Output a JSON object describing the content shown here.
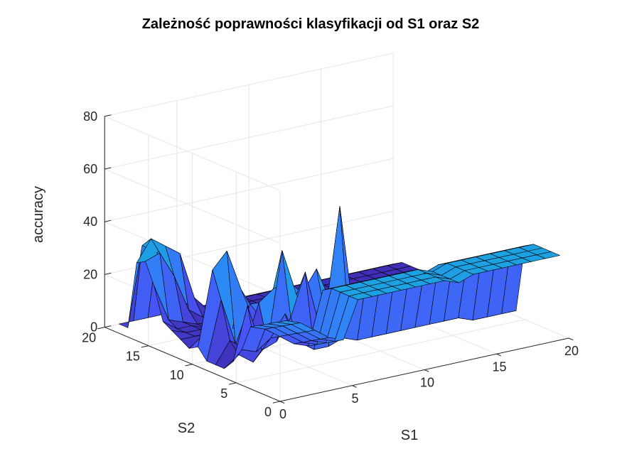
{
  "chart_data": {
    "type": "surface",
    "title": "Zależność poprawności klasyfikacji od S1 oraz S2",
    "xlabel": "S1",
    "ylabel": "S2",
    "zlabel": "accuracy",
    "xlim": [
      0,
      20
    ],
    "ylim": [
      0,
      20
    ],
    "zlim": [
      0,
      80
    ],
    "xticks": [
      "0",
      "5",
      "10",
      "15",
      "20"
    ],
    "yticks": [
      "0",
      "5",
      "10",
      "15",
      "20"
    ],
    "zticks": [
      "0",
      "20",
      "40",
      "60",
      "80"
    ],
    "grid": true,
    "colormap": "parula",
    "x": [
      1,
      2,
      3,
      4,
      5,
      6,
      7,
      8,
      9,
      10,
      11,
      12,
      13,
      14,
      15,
      16,
      17,
      18,
      19,
      20
    ],
    "y": [
      1,
      2,
      3,
      4,
      5,
      6,
      7,
      8,
      9,
      10,
      11,
      12,
      13,
      14,
      15,
      16,
      17,
      18,
      19,
      20
    ],
    "z": [
      [
        28,
        26,
        22,
        18,
        16,
        30,
        30,
        30,
        30,
        30,
        30,
        30,
        28,
        30,
        30,
        30,
        30,
        30,
        30,
        30
      ],
      [
        26,
        24,
        20,
        16,
        14,
        30,
        30,
        30,
        30,
        30,
        30,
        30,
        28,
        30,
        30,
        30,
        30,
        30,
        30,
        30
      ],
      [
        24,
        22,
        18,
        14,
        12,
        30,
        30,
        30,
        30,
        30,
        30,
        30,
        28,
        30,
        30,
        30,
        30,
        30,
        30,
        30
      ],
      [
        22,
        20,
        16,
        12,
        10,
        30,
        30,
        30,
        30,
        30,
        30,
        30,
        28,
        30,
        30,
        30,
        30,
        30,
        30,
        30
      ],
      [
        20,
        18,
        14,
        10,
        8,
        28,
        28,
        28,
        28,
        28,
        28,
        28,
        26,
        28,
        28,
        28,
        28,
        28,
        28,
        28
      ],
      [
        10,
        8,
        12,
        20,
        8,
        4,
        4,
        6,
        4,
        4,
        4,
        4,
        4,
        4,
        4,
        4,
        2,
        2,
        2,
        2
      ],
      [
        4,
        24,
        6,
        8,
        16,
        32,
        10,
        12,
        10,
        4,
        2,
        2,
        2,
        2,
        2,
        2,
        2,
        2,
        2,
        2
      ],
      [
        0,
        4,
        0,
        6,
        40,
        22,
        14,
        12,
        52,
        8,
        4,
        2,
        2,
        2,
        2,
        2,
        2,
        2,
        2,
        2
      ],
      [
        0,
        8,
        4,
        20,
        24,
        26,
        20,
        28,
        14,
        6,
        4,
        2,
        2,
        2,
        2,
        2,
        2,
        2,
        2,
        2
      ],
      [
        0,
        22,
        4,
        18,
        10,
        8,
        20,
        6,
        10,
        4,
        2,
        2,
        2,
        2,
        2,
        2,
        2,
        2,
        2,
        2
      ],
      [
        4,
        32,
        38,
        22,
        8,
        6,
        6,
        6,
        4,
        2,
        2,
        2,
        2,
        2,
        2,
        2,
        2,
        2,
        2,
        2
      ],
      [
        2,
        6,
        8,
        6,
        4,
        4,
        4,
        4,
        2,
        2,
        2,
        2,
        2,
        2,
        2,
        2,
        2,
        2,
        2,
        2
      ],
      [
        4,
        4,
        4,
        4,
        4,
        4,
        2,
        2,
        2,
        2,
        2,
        2,
        2,
        2,
        2,
        2,
        2,
        2,
        2,
        2
      ],
      [
        6,
        4,
        4,
        4,
        4,
        2,
        2,
        2,
        2,
        2,
        2,
        2,
        2,
        2,
        2,
        2,
        2,
        2,
        2,
        2
      ],
      [
        8,
        4,
        4,
        2,
        2,
        2,
        2,
        2,
        2,
        2,
        2,
        2,
        2,
        2,
        2,
        2,
        2,
        2,
        2,
        2
      ],
      [
        20,
        6,
        4,
        2,
        2,
        2,
        2,
        2,
        2,
        2,
        2,
        2,
        2,
        2,
        2,
        2,
        2,
        2,
        2,
        2
      ],
      [
        28,
        30,
        20,
        6,
        2,
        2,
        2,
        2,
        2,
        2,
        2,
        2,
        2,
        2,
        2,
        2,
        2,
        2,
        2,
        2
      ],
      [
        26,
        34,
        30,
        26,
        8,
        2,
        2,
        2,
        2,
        2,
        2,
        2,
        2,
        2,
        2,
        2,
        2,
        2,
        2,
        2
      ],
      [
        0,
        30,
        26,
        20,
        4,
        2,
        2,
        2,
        2,
        2,
        2,
        2,
        2,
        2,
        2,
        2,
        2,
        2,
        2,
        2
      ],
      [
        0,
        0,
        0,
        0,
        0,
        0,
        0,
        0,
        0,
        0,
        0,
        0,
        0,
        0,
        0,
        0,
        0,
        0,
        0,
        0
      ]
    ]
  }
}
